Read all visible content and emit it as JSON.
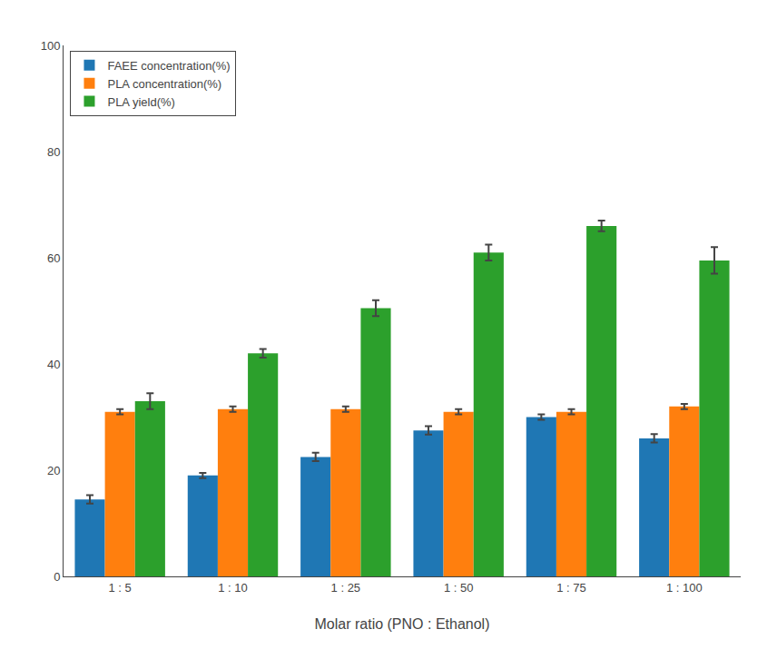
{
  "chart_data": {
    "type": "bar",
    "categories": [
      "1 : 5",
      "1 : 10",
      "1 : 25",
      "1 : 50",
      "1 : 75",
      "1 : 100"
    ],
    "series": [
      {
        "name": "FAEE concentration(%)",
        "values": [
          14.5,
          19.0,
          22.5,
          27.5,
          30.0,
          26.0
        ],
        "errors": [
          0.8,
          0.5,
          0.8,
          0.8,
          0.5,
          0.8
        ]
      },
      {
        "name": "PLA concentration(%)",
        "values": [
          31.0,
          31.5,
          31.5,
          31.0,
          31.0,
          32.0
        ],
        "errors": [
          0.5,
          0.5,
          0.5,
          0.5,
          0.5,
          0.5
        ]
      },
      {
        "name": "PLA yield(%)",
        "values": [
          33.0,
          42.0,
          50.5,
          61.0,
          66.0,
          59.5
        ],
        "errors": [
          1.5,
          0.8,
          1.5,
          1.5,
          1.0,
          2.5
        ]
      }
    ],
    "xlabel": "Molar ratio (PNO : Ethanol)",
    "ylim": [
      0,
      100
    ],
    "yticks": [
      0,
      20,
      40,
      60,
      80,
      100
    ],
    "grid": false,
    "legend": "upper left"
  }
}
